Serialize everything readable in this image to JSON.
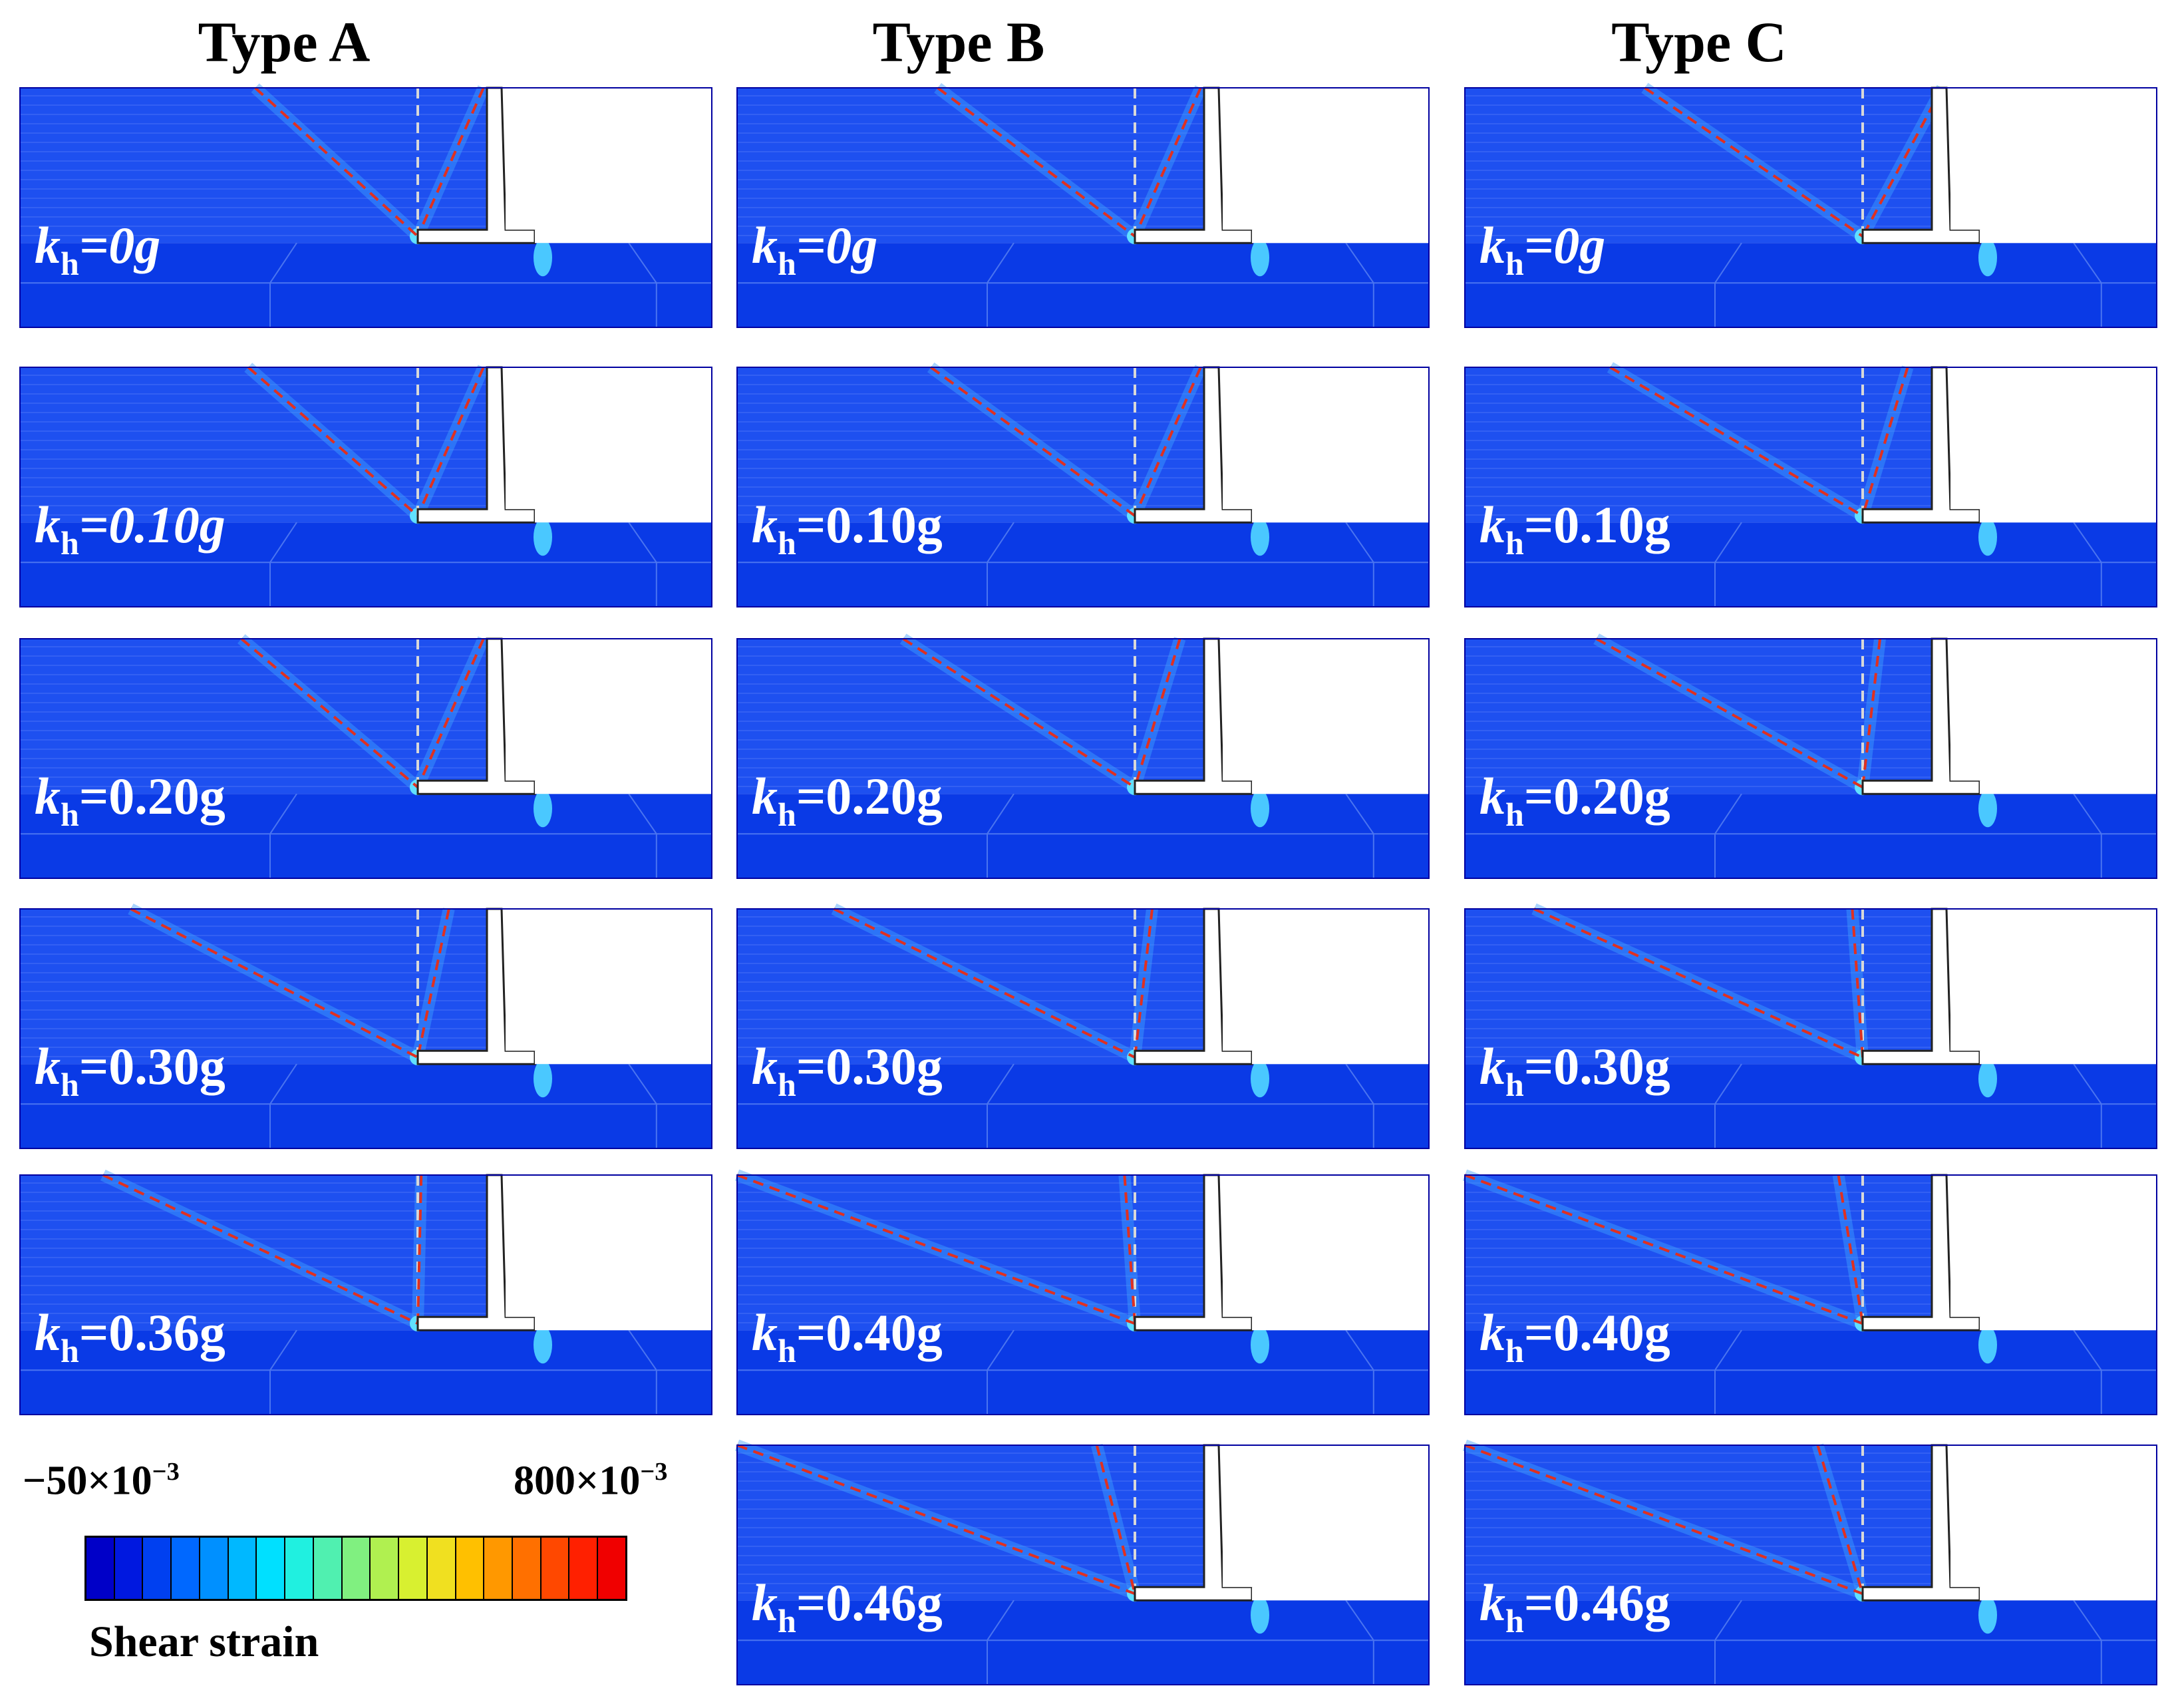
{
  "columns": [
    {
      "id": "A",
      "title": "Type A",
      "panels": [
        {
          "label_pre": "k",
          "label_sub": "h",
          "label_post": "=0g",
          "italic_g": true
        },
        {
          "label_pre": "k",
          "label_sub": "h",
          "label_post": "=0.10g",
          "italic_g": true
        },
        {
          "label_pre": "k",
          "label_sub": "h",
          "label_post": "=0.20g",
          "italic_g": false
        },
        {
          "label_pre": "k",
          "label_sub": "h",
          "label_post": "=0.30g",
          "italic_g": false
        },
        {
          "label_pre": "k",
          "label_sub": "h",
          "label_post": "=0.36g",
          "italic_g": false
        }
      ]
    },
    {
      "id": "B",
      "title": "Type B",
      "panels": [
        {
          "label_pre": "k",
          "label_sub": "h",
          "label_post": "=0g",
          "italic_g": true
        },
        {
          "label_pre": "k",
          "label_sub": "h",
          "label_post": "=0.10g",
          "italic_g": false
        },
        {
          "label_pre": "k",
          "label_sub": "h",
          "label_post": "=0.20g",
          "italic_g": false
        },
        {
          "label_pre": "k",
          "label_sub": "h",
          "label_post": "=0.30g",
          "italic_g": false
        },
        {
          "label_pre": "k",
          "label_sub": "h",
          "label_post": "=0.40g",
          "italic_g": false
        },
        {
          "label_pre": "k",
          "label_sub": "h",
          "label_post": "=0.46g",
          "italic_g": false
        }
      ]
    },
    {
      "id": "C",
      "title": "Type C",
      "panels": [
        {
          "label_pre": "k",
          "label_sub": "h",
          "label_post": "=0g",
          "italic_g": true
        },
        {
          "label_pre": "k",
          "label_sub": "h",
          "label_post": "=0.10g",
          "italic_g": false
        },
        {
          "label_pre": "k",
          "label_sub": "h",
          "label_post": "=0.20g",
          "italic_g": false
        },
        {
          "label_pre": "k",
          "label_sub": "h",
          "label_post": "=0.30g",
          "italic_g": false
        },
        {
          "label_pre": "k",
          "label_sub": "h",
          "label_post": "=0.40g",
          "italic_g": false
        },
        {
          "label_pre": "k",
          "label_sub": "h",
          "label_post": "=0.46g",
          "italic_g": false
        }
      ]
    }
  ],
  "colorbar": {
    "min_label_base": "−50×10",
    "min_label_exp": "−3",
    "max_label_base": "800×10",
    "max_label_exp": "−3",
    "title": "Shear strain",
    "colors": [
      "#0000c8",
      "#0018e0",
      "#0040f0",
      "#0068ff",
      "#0090ff",
      "#00b8ff",
      "#00e0ff",
      "#20f0e0",
      "#50f0b0",
      "#80f080",
      "#b0f050",
      "#d8f030",
      "#f0e020",
      "#ffc000",
      "#ff9800",
      "#ff7000",
      "#ff4800",
      "#ff2000",
      "#f00000"
    ]
  },
  "colors": {
    "soil_background": "#1e50f0",
    "foundation": "#0a3ae6",
    "slip_line": "#e03020",
    "reference_line": "#d8d8d8",
    "wall_fill": "#ffffff",
    "wall_stroke": "#222222"
  }
}
